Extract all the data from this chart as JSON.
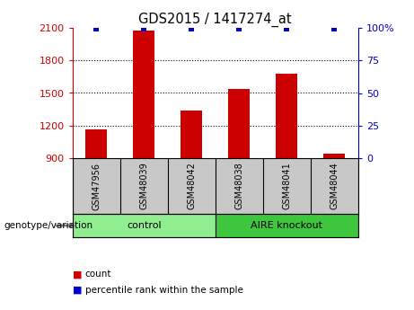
{
  "title": "GDS2015 / 1417274_at",
  "samples": [
    "GSM47956",
    "GSM48039",
    "GSM48042",
    "GSM48038",
    "GSM48041",
    "GSM48044"
  ],
  "counts": [
    1165,
    2075,
    1335,
    1540,
    1680,
    940
  ],
  "percentile_ranks": [
    99,
    99,
    99,
    99,
    99,
    99
  ],
  "groups": [
    {
      "label": "control",
      "n_samples": 3,
      "color": "#90EE90"
    },
    {
      "label": "AIRE knockout",
      "n_samples": 3,
      "color": "#3EC63E"
    }
  ],
  "ylim_left": [
    900,
    2100
  ],
  "yticks_left": [
    900,
    1200,
    1500,
    1800,
    2100
  ],
  "ylim_right": [
    0,
    100
  ],
  "yticks_right": [
    0,
    25,
    50,
    75,
    100
  ],
  "bar_color": "#CC0000",
  "marker_color": "#0000CC",
  "bg_color": "#FFFFFF",
  "grid_color": "#000000",
  "label_color_left": "#CC0000",
  "label_color_right": "#0000CC",
  "sample_bg_color": "#C8C8C8",
  "genotype_label": "genotype/variation",
  "legend_count_label": "count",
  "legend_pct_label": "percentile rank within the sample"
}
